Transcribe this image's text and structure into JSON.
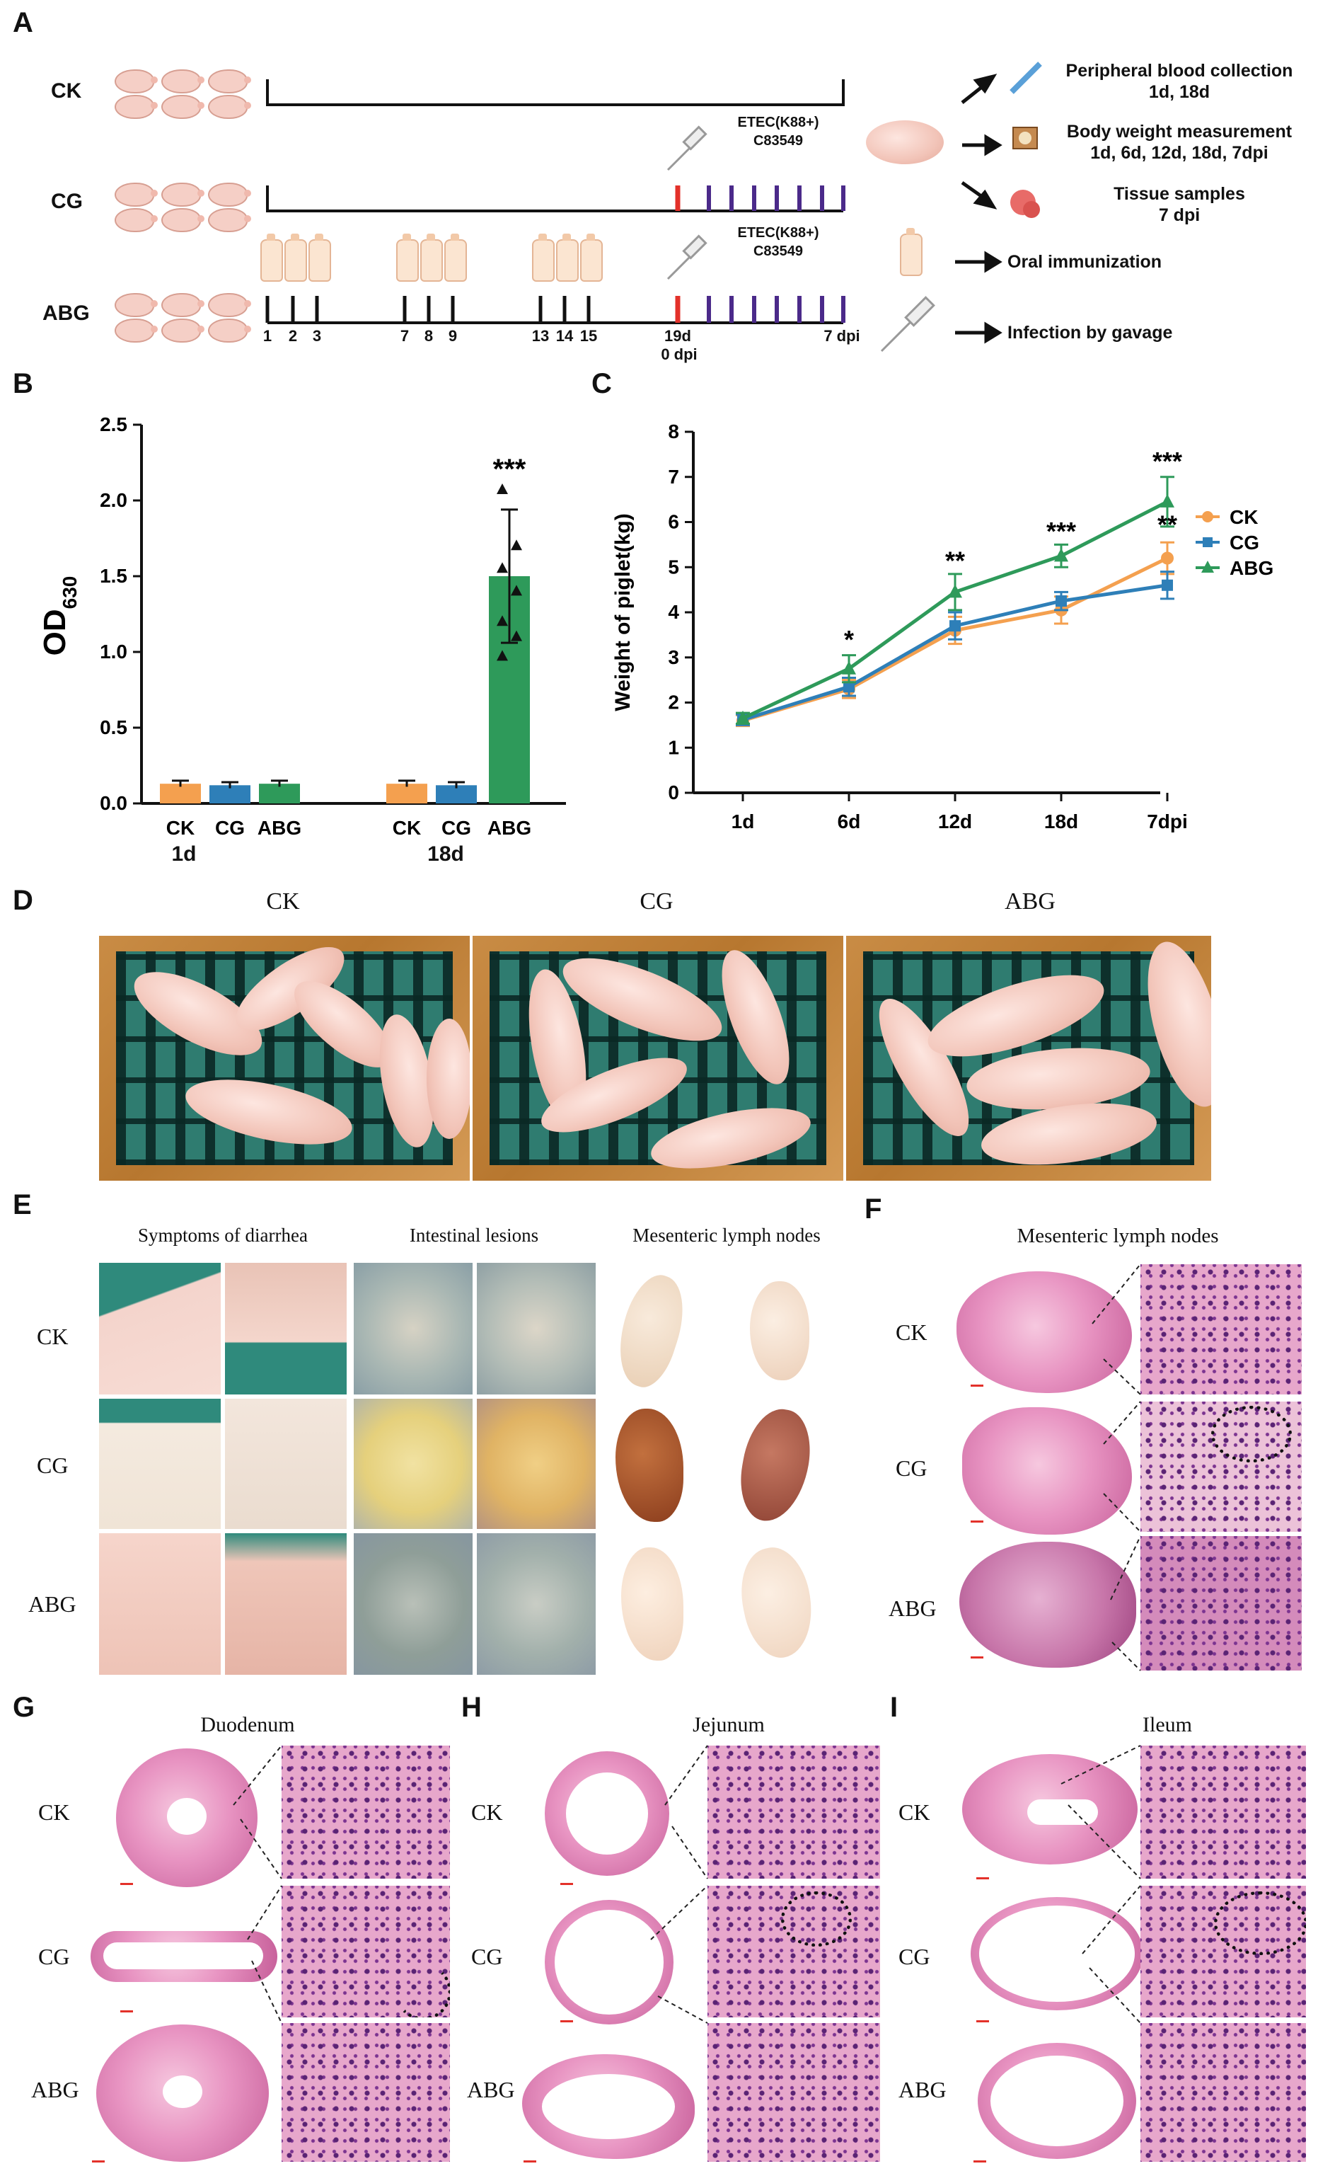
{
  "panels": {
    "A": "A",
    "B": "B",
    "C": "C",
    "D": "D",
    "E": "E",
    "F": "F",
    "G": "G",
    "H": "H",
    "I": "I"
  },
  "groups": {
    "ck": "CK",
    "cg": "CG",
    "abg": "ABG"
  },
  "panel_a": {
    "etec_line1": "ETEC(K88+)",
    "etec_line2": "C83549",
    "days": [
      "1",
      "2",
      "3",
      "7",
      "8",
      "9",
      "13",
      "14",
      "15"
    ],
    "day19": "19d",
    "dpi0": "0 dpi",
    "dpi7": "7 dpi",
    "outcome_blood_title": "Peripheral blood collection",
    "outcome_blood_days": "1d, 18d",
    "outcome_weight_title": "Body weight measurement",
    "outcome_weight_days": "1d, 6d, 12d, 18d, 7dpi",
    "outcome_tissue_title": "Tissue samples",
    "outcome_tissue_days": "7 dpi",
    "legend_oral": "Oral immunization",
    "legend_gavage": "Infection by gavage"
  },
  "chart_data": [
    {
      "panel": "B",
      "type": "bar",
      "ylabel": "OD",
      "ylabel_sub": "630",
      "ylim": [
        0,
        2.5
      ],
      "yticks": [
        "0.0",
        "0.5",
        "1.0",
        "1.5",
        "2.0",
        "2.5"
      ],
      "timepoints": [
        "1d",
        "18d"
      ],
      "categories": [
        "CK",
        "CG",
        "ABG",
        "CK",
        "CG",
        "ABG"
      ],
      "values": [
        0.13,
        0.12,
        0.13,
        0.13,
        0.12,
        1.5
      ],
      "errors": [
        0.02,
        0.02,
        0.02,
        0.02,
        0.02,
        0.44
      ],
      "colors": [
        "#f4a04f",
        "#2e7fb8",
        "#2e9a5a",
        "#f4a04f",
        "#2e7fb8",
        "#2e9a5a"
      ],
      "significance": [
        "",
        "",
        "",
        "",
        "",
        "***"
      ]
    },
    {
      "panel": "C",
      "type": "line",
      "ylabel": "Weight of piglet(kg)",
      "ylim": [
        0,
        8
      ],
      "yticks": [
        "0",
        "1",
        "2",
        "3",
        "4",
        "5",
        "6",
        "7",
        "8"
      ],
      "x": [
        "1d",
        "6d",
        "12d",
        "18d",
        "7dpi"
      ],
      "legend": "right",
      "series": [
        {
          "name": "CK",
          "color": "#f4a04f",
          "values": [
            1.6,
            2.3,
            3.6,
            4.05,
            5.2
          ],
          "errors": [
            0.12,
            0.2,
            0.3,
            0.3,
            0.35
          ],
          "marker": "circle"
        },
        {
          "name": "CG",
          "color": "#2e7fb8",
          "values": [
            1.62,
            2.35,
            3.7,
            4.25,
            4.6
          ],
          "errors": [
            0.12,
            0.2,
            0.3,
            0.2,
            0.3
          ],
          "marker": "square"
        },
        {
          "name": "ABG",
          "color": "#2e9a5a",
          "values": [
            1.65,
            2.75,
            4.45,
            5.25,
            6.45
          ],
          "errors": [
            0.12,
            0.3,
            0.4,
            0.25,
            0.55
          ],
          "marker": "triangle"
        }
      ],
      "annotations": [
        {
          "x": "6d",
          "y": 3.2,
          "text": "*"
        },
        {
          "x": "12d",
          "y": 4.95,
          "text": "**"
        },
        {
          "x": "18d",
          "y": 5.6,
          "text": "***"
        },
        {
          "x": "7dpi",
          "y": 7.15,
          "text": "***"
        },
        {
          "x": "7dpi",
          "y": 5.75,
          "text": "**"
        }
      ]
    }
  ],
  "panel_d": {
    "captions": [
      "CK",
      "CG",
      "ABG"
    ]
  },
  "panel_e": {
    "col1": "Symptoms of diarrhea",
    "col2": "Intestinal lesions",
    "col3": "Mesenteric lymph nodes"
  },
  "panel_f": {
    "title": "Mesenteric lymph nodes"
  },
  "panel_g": {
    "title": "Duodenum"
  },
  "panel_h": {
    "title": "Jejunum"
  },
  "panel_i": {
    "title": "Ileum"
  }
}
